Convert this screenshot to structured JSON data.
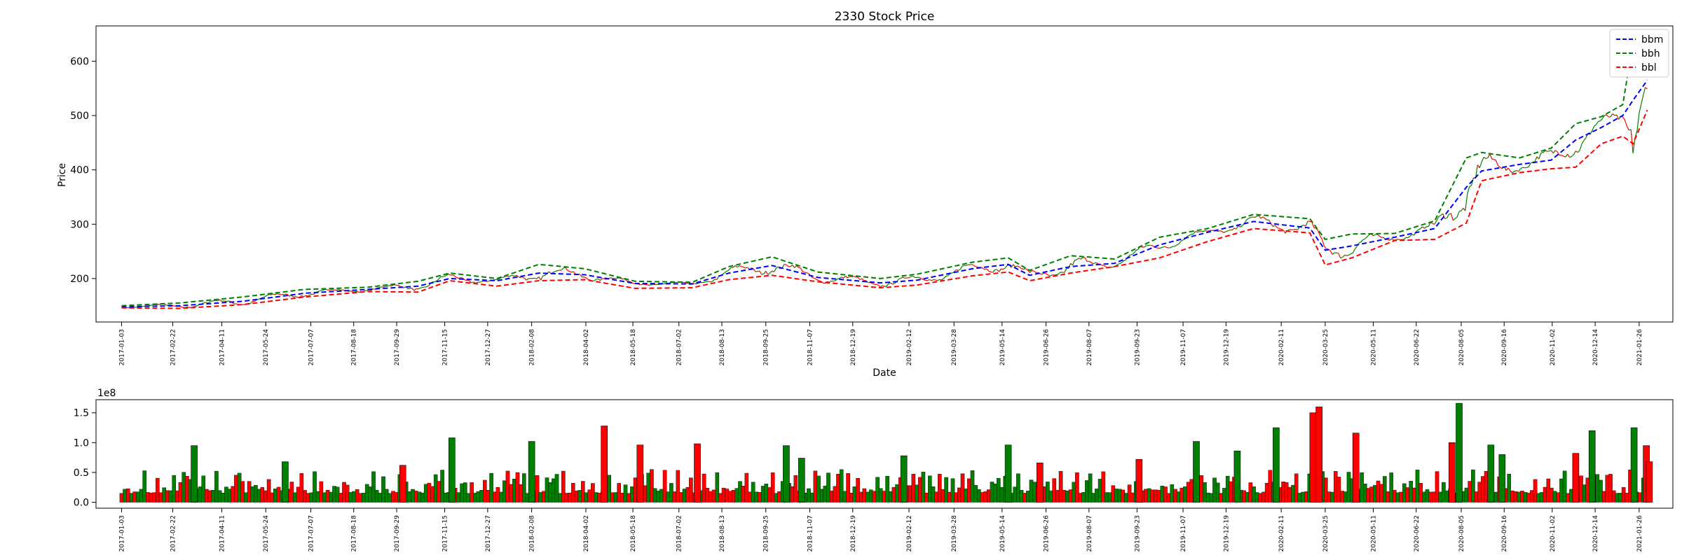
{
  "chart_data": [
    {
      "type": "line",
      "title": "2330 Stock Price",
      "xlabel": "Date",
      "ylabel": "Price",
      "ylim": [
        120,
        665
      ],
      "yticks": [
        200,
        300,
        400,
        500,
        600
      ],
      "x_range": [
        "2016-12-09",
        "2021-02-28"
      ],
      "x_tick_labels": [
        "2017-01-03",
        "2017-02-22",
        "2017-04-11",
        "2017-05-24",
        "2017-07-07",
        "2017-08-18",
        "2017-09-29",
        "2017-11-15",
        "2017-12-27",
        "2018-02-08",
        "2018-04-02",
        "2018-05-18",
        "2018-07-02",
        "2018-08-13",
        "2018-09-25",
        "2018-11-07",
        "2018-12-19",
        "2019-02-12",
        "2019-03-28",
        "2019-05-14",
        "2019-06-26",
        "2019-08-07",
        "2019-09-23",
        "2019-11-07",
        "2019-12-19",
        "2020-02-11",
        "2020-03-25",
        "2020-05-11",
        "2020-06-22",
        "2020-08-05",
        "2020-09-16",
        "2020-11-02",
        "2020-12-14",
        "2021-01-26"
      ],
      "grid": false,
      "legend_position": "top-right",
      "series": [
        {
          "name": "bbm",
          "color": "#0000ff",
          "style": "dashed",
          "points": [
            [
              "2017-01-03",
              148
            ],
            [
              "2017-03-01",
              150
            ],
            [
              "2017-05-01",
              158
            ],
            [
              "2017-07-01",
              173
            ],
            [
              "2017-09-01",
              180
            ],
            [
              "2017-10-20",
              186
            ],
            [
              "2017-11-20",
              200
            ],
            [
              "2018-01-05",
              196
            ],
            [
              "2018-02-15",
              210
            ],
            [
              "2018-04-01",
              207
            ],
            [
              "2018-05-20",
              191
            ],
            [
              "2018-07-15",
              190
            ],
            [
              "2018-08-20",
              210
            ],
            [
              "2018-10-01",
              224
            ],
            [
              "2018-11-15",
              202
            ],
            [
              "2019-01-15",
              192
            ],
            [
              "2019-02-20",
              197
            ],
            [
              "2019-04-15",
              218
            ],
            [
              "2019-05-20",
              226
            ],
            [
              "2019-06-10",
              206
            ],
            [
              "2019-07-20",
              222
            ],
            [
              "2019-09-01",
              228
            ],
            [
              "2019-10-15",
              262
            ],
            [
              "2019-12-01",
              285
            ],
            [
              "2020-01-15",
              305
            ],
            [
              "2020-03-10",
              293
            ],
            [
              "2020-03-25",
              252
            ],
            [
              "2020-04-20",
              260
            ],
            [
              "2020-06-01",
              276
            ],
            [
              "2020-07-10",
              292
            ],
            [
              "2020-08-10",
              368
            ],
            [
              "2020-08-25",
              398
            ],
            [
              "2020-10-01",
              410
            ],
            [
              "2020-11-01",
              418
            ],
            [
              "2020-11-25",
              455
            ],
            [
              "2020-12-20",
              478
            ],
            [
              "2021-01-10",
              500
            ],
            [
              "2021-01-20",
              528
            ],
            [
              "2021-02-03",
              565
            ]
          ]
        },
        {
          "name": "bbh",
          "color": "#008000",
          "style": "dashed",
          "points": [
            [
              "2017-01-03",
              150
            ],
            [
              "2017-03-01",
              155
            ],
            [
              "2017-05-01",
              166
            ],
            [
              "2017-07-01",
              180
            ],
            [
              "2017-09-01",
              184
            ],
            [
              "2017-10-20",
              195
            ],
            [
              "2017-11-20",
              210
            ],
            [
              "2018-01-05",
              200
            ],
            [
              "2018-02-15",
              226
            ],
            [
              "2018-04-01",
              218
            ],
            [
              "2018-05-20",
              195
            ],
            [
              "2018-07-15",
              193
            ],
            [
              "2018-08-20",
              222
            ],
            [
              "2018-10-01",
              240
            ],
            [
              "2018-11-15",
              212
            ],
            [
              "2019-01-15",
              200
            ],
            [
              "2019-02-20",
              208
            ],
            [
              "2019-04-15",
              230
            ],
            [
              "2019-05-20",
              238
            ],
            [
              "2019-06-10",
              215
            ],
            [
              "2019-07-20",
              242
            ],
            [
              "2019-09-01",
              236
            ],
            [
              "2019-10-15",
              276
            ],
            [
              "2019-12-01",
              292
            ],
            [
              "2020-01-15",
              318
            ],
            [
              "2020-03-10",
              310
            ],
            [
              "2020-03-25",
              272
            ],
            [
              "2020-04-20",
              282
            ],
            [
              "2020-06-01",
              283
            ],
            [
              "2020-07-10",
              306
            ],
            [
              "2020-08-10",
              422
            ],
            [
              "2020-08-25",
              432
            ],
            [
              "2020-10-01",
              422
            ],
            [
              "2020-11-01",
              440
            ],
            [
              "2020-11-25",
              485
            ],
            [
              "2020-12-20",
              498
            ],
            [
              "2021-01-10",
              520
            ],
            [
              "2021-01-20",
              635
            ],
            [
              "2021-02-03",
              628
            ]
          ]
        },
        {
          "name": "bbl",
          "color": "#ff0000",
          "style": "dashed",
          "points": [
            [
              "2017-01-03",
              146
            ],
            [
              "2017-03-01",
              145
            ],
            [
              "2017-05-01",
              152
            ],
            [
              "2017-07-01",
              166
            ],
            [
              "2017-09-01",
              176
            ],
            [
              "2017-10-20",
              175
            ],
            [
              "2017-11-20",
              196
            ],
            [
              "2018-01-05",
              186
            ],
            [
              "2018-02-15",
              196
            ],
            [
              "2018-04-01",
              198
            ],
            [
              "2018-05-20",
              182
            ],
            [
              "2018-07-15",
              183
            ],
            [
              "2018-08-20",
              198
            ],
            [
              "2018-10-01",
              206
            ],
            [
              "2018-11-15",
              194
            ],
            [
              "2019-01-15",
              183
            ],
            [
              "2019-02-20",
              188
            ],
            [
              "2019-04-15",
              205
            ],
            [
              "2019-05-20",
              212
            ],
            [
              "2019-06-10",
              196
            ],
            [
              "2019-07-20",
              210
            ],
            [
              "2019-09-01",
              222
            ],
            [
              "2019-10-15",
              238
            ],
            [
              "2019-12-01",
              268
            ],
            [
              "2020-01-15",
              292
            ],
            [
              "2020-03-10",
              284
            ],
            [
              "2020-03-25",
              225
            ],
            [
              "2020-04-20",
              238
            ],
            [
              "2020-06-01",
              270
            ],
            [
              "2020-07-10",
              272
            ],
            [
              "2020-08-10",
              302
            ],
            [
              "2020-08-25",
              380
            ],
            [
              "2020-10-01",
              395
            ],
            [
              "2020-11-01",
              402
            ],
            [
              "2020-11-25",
              405
            ],
            [
              "2020-12-20",
              448
            ],
            [
              "2021-01-10",
              462
            ],
            [
              "2021-01-20",
              448
            ],
            [
              "2021-02-03",
              510
            ]
          ]
        }
      ],
      "price_lines": {
        "colors": [
          "#ff0000",
          "#008000"
        ]
      }
    },
    {
      "type": "bar",
      "title": "",
      "ylabel": "",
      "offset_label": "1e8",
      "ylim": [
        -0.1,
        1.72
      ],
      "yticks": [
        0.0,
        0.5,
        1.0,
        1.5
      ],
      "ytick_labels": [
        "0.0",
        "0.5",
        "1.0",
        "1.5"
      ],
      "x_tick_labels": [
        "2017-01-03",
        "2017-02-22",
        "2017-04-11",
        "2017-05-24",
        "2017-07-07",
        "2017-08-18",
        "2017-09-29",
        "2017-11-15",
        "2017-12-27",
        "2018-02-08",
        "2018-04-02",
        "2018-05-18",
        "2018-07-02",
        "2018-08-13",
        "2018-09-25",
        "2018-11-07",
        "2018-12-19",
        "2019-02-12",
        "2019-03-28",
        "2019-05-14",
        "2019-06-26",
        "2019-08-07",
        "2019-09-23",
        "2019-11-07",
        "2019-12-19",
        "2020-02-11",
        "2020-03-25",
        "2020-05-11",
        "2020-06-22",
        "2020-08-05",
        "2020-09-16",
        "2020-11-02",
        "2020-12-14",
        "2021-01-26"
      ],
      "colors": {
        "up": "#008000",
        "down": "#ff0000",
        "edge": "#000000"
      },
      "notable_bars": [
        {
          "date": "2017-03-15",
          "value": 0.95,
          "color": "green"
        },
        {
          "date": "2017-06-12",
          "value": 0.68,
          "color": "green"
        },
        {
          "date": "2017-10-05",
          "value": 0.62,
          "color": "red"
        },
        {
          "date": "2017-11-22",
          "value": 1.08,
          "color": "green"
        },
        {
          "date": "2018-02-08",
          "value": 1.02,
          "color": "green"
        },
        {
          "date": "2018-04-20",
          "value": 1.28,
          "color": "red"
        },
        {
          "date": "2018-05-25",
          "value": 0.96,
          "color": "red"
        },
        {
          "date": "2018-07-20",
          "value": 0.98,
          "color": "red"
        },
        {
          "date": "2018-10-15",
          "value": 0.95,
          "color": "green"
        },
        {
          "date": "2018-10-30",
          "value": 0.74,
          "color": "green"
        },
        {
          "date": "2019-02-07",
          "value": 0.78,
          "color": "green"
        },
        {
          "date": "2019-05-20",
          "value": 0.96,
          "color": "green"
        },
        {
          "date": "2019-06-20",
          "value": 0.66,
          "color": "red"
        },
        {
          "date": "2019-09-25",
          "value": 0.72,
          "color": "red"
        },
        {
          "date": "2019-11-20",
          "value": 1.02,
          "color": "green"
        },
        {
          "date": "2019-12-30",
          "value": 0.86,
          "color": "green"
        },
        {
          "date": "2020-02-06",
          "value": 1.25,
          "color": "green"
        },
        {
          "date": "2020-03-13",
          "value": 1.5,
          "color": "red"
        },
        {
          "date": "2020-03-19",
          "value": 1.6,
          "color": "red"
        },
        {
          "date": "2020-04-24",
          "value": 1.16,
          "color": "red"
        },
        {
          "date": "2020-07-27",
          "value": 1.0,
          "color": "red"
        },
        {
          "date": "2020-08-03",
          "value": 1.66,
          "color": "green"
        },
        {
          "date": "2020-09-03",
          "value": 0.96,
          "color": "green"
        },
        {
          "date": "2020-09-14",
          "value": 0.8,
          "color": "green"
        },
        {
          "date": "2020-11-25",
          "value": 0.82,
          "color": "red"
        },
        {
          "date": "2020-12-11",
          "value": 1.2,
          "color": "green"
        },
        {
          "date": "2021-01-21",
          "value": 1.25,
          "color": "green"
        },
        {
          "date": "2021-02-02",
          "value": 0.95,
          "color": "red"
        },
        {
          "date": "2021-02-05",
          "value": 0.68,
          "color": "red"
        }
      ],
      "typical_range": [
        0.15,
        0.55
      ]
    }
  ]
}
